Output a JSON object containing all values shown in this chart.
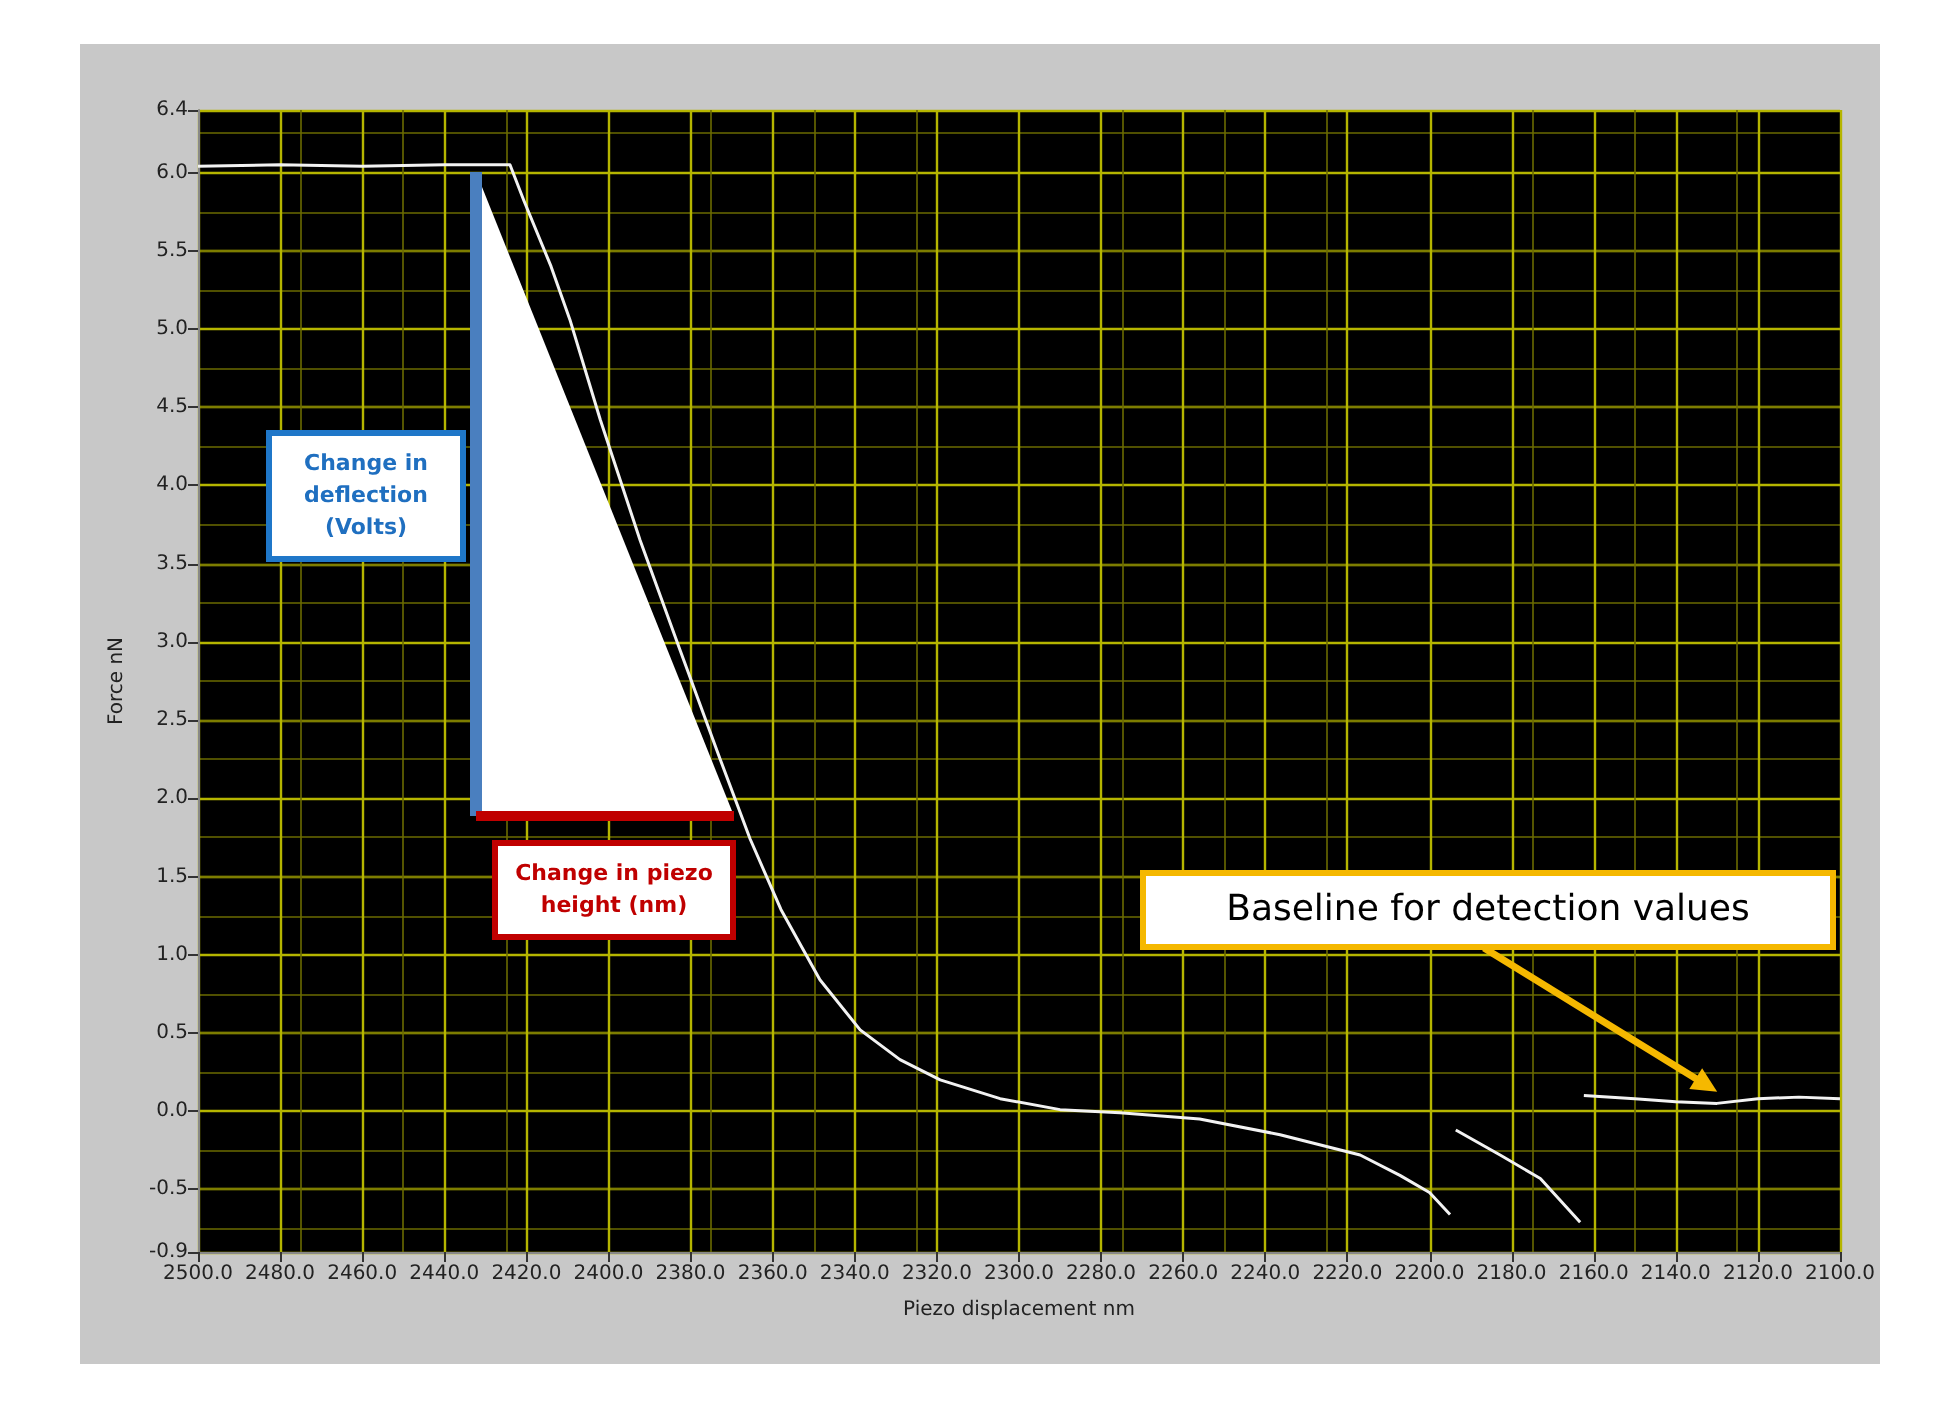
{
  "chart_data": {
    "type": "line",
    "xlabel": "Piezo displacement nm",
    "ylabel": "Force nN",
    "x": [
      2500,
      2480,
      2460,
      2440,
      2424,
      2420.6,
      2414,
      2409.4,
      2402,
      2392.3,
      2382.6,
      2372.8,
      2365.5,
      2358,
      2348.5,
      2338.7,
      2329,
      2319.2,
      2304.6,
      2290,
      2275.4,
      2256,
      2236.4,
      2216.9,
      2207.2,
      2200,
      2195,
      2194.5,
      2193.6,
      2182.8,
      2173,
      2163.3,
      2162.8,
      2162.4,
      2150,
      2140,
      2130,
      2120,
      2110,
      2100
    ],
    "series": [
      {
        "color": "#f2f2f2",
        "values": [
          6.04,
          6.05,
          6.04,
          6.05,
          6.05,
          5.82,
          5.4,
          5.06,
          4.42,
          3.65,
          2.95,
          2.25,
          1.74,
          1.29,
          0.84,
          0.52,
          0.33,
          0.2,
          0.08,
          0.01,
          -0.01,
          -0.05,
          -0.15,
          -0.28,
          -0.41,
          -0.52,
          -0.66,
          null,
          -0.12,
          -0.28,
          -0.43,
          -0.71,
          null,
          0.1,
          0.08,
          0.06,
          0.05,
          0.08,
          0.09,
          0.08
        ]
      }
    ],
    "xlim": [
      2500,
      2100
    ],
    "xticks": [
      {
        "value": 2500,
        "label": "2500.0"
      },
      {
        "value": 2480,
        "label": "2480.0"
      },
      {
        "value": 2460,
        "label": "2460.0"
      },
      {
        "value": 2440,
        "label": "2440.0"
      },
      {
        "value": 2420,
        "label": "2420.0"
      },
      {
        "value": 2400,
        "label": "2400.0"
      },
      {
        "value": 2380,
        "label": "2380.0"
      },
      {
        "value": 2360,
        "label": "2360.0"
      },
      {
        "value": 2340,
        "label": "2340.0"
      },
      {
        "value": 2320,
        "label": "2320.0"
      },
      {
        "value": 2300,
        "label": "2300.0"
      },
      {
        "value": 2280,
        "label": "2280.0"
      },
      {
        "value": 2260,
        "label": "2260.0"
      },
      {
        "value": 2240,
        "label": "2240.0"
      },
      {
        "value": 2220,
        "label": "2220.0"
      },
      {
        "value": 2200,
        "label": "2200.0"
      },
      {
        "value": 2180,
        "label": "2180.0"
      },
      {
        "value": 2160,
        "label": "2160.0"
      },
      {
        "value": 2140,
        "label": "2140.0"
      },
      {
        "value": 2120,
        "label": "2120.0"
      },
      {
        "value": 2100,
        "label": "2100.0"
      }
    ],
    "ylim": [
      -0.9,
      6.4
    ],
    "yticks": [
      -0.9,
      -0.5,
      {
        "value": 0,
        "label": "0.0"
      },
      0.5,
      {
        "value": 1,
        "label": "1.0"
      },
      1.5,
      {
        "value": 2,
        "label": "2.0"
      },
      2.5,
      {
        "value": 3,
        "label": "3.0"
      },
      3.5,
      {
        "value": 4,
        "label": "4.0"
      },
      4.5,
      {
        "value": 5,
        "label": "5.0"
      },
      5.5,
      {
        "value": 6,
        "label": "6.0"
      },
      6.4
    ],
    "grid": true,
    "marker": "none",
    "line_style": "solid",
    "annotations": [
      "Change in deflection (Volts)",
      "Change in piezo height (nm)",
      "Baseline for detection values"
    ]
  }
}
